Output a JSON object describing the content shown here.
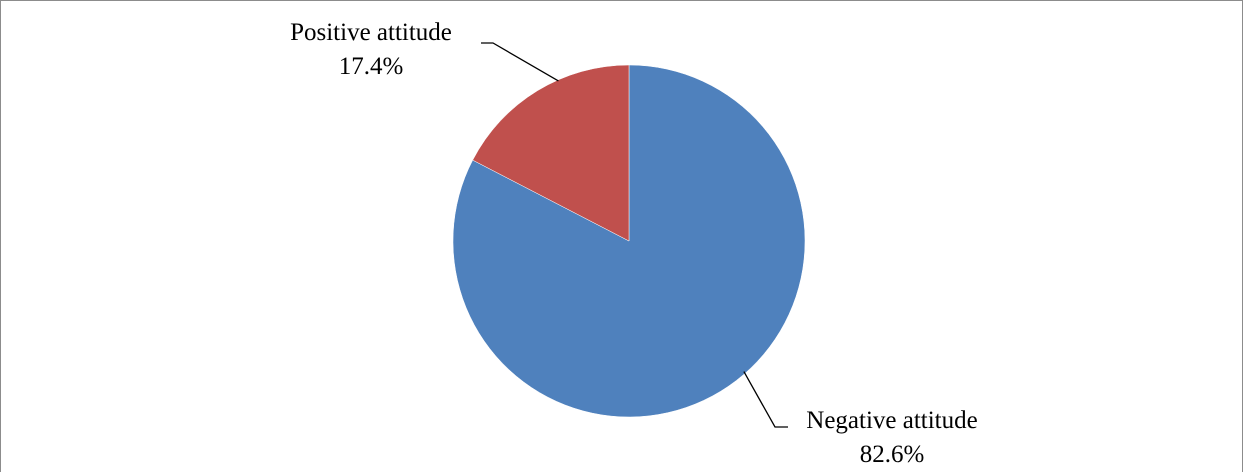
{
  "chart_data": {
    "type": "pie",
    "title": "",
    "start_angle_deg": 0,
    "direction": "clockwise",
    "slices": [
      {
        "label": "Negative attitude",
        "value": 82.6,
        "value_text": "82.6%",
        "color": "#4F81BD"
      },
      {
        "label": "Positive attitude",
        "value": 17.4,
        "value_text": "17.4%",
        "color": "#C0504D"
      }
    ],
    "legend": "none",
    "label_style": "outside with leader lines"
  }
}
